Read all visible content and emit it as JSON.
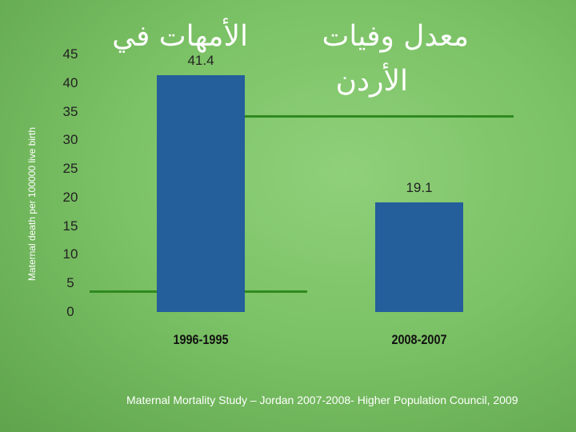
{
  "title_lines": [
    "الأمهات في",
    "معدل وفيات",
    "الأردن"
  ],
  "chart_data": {
    "type": "bar",
    "categories": [
      "1996-1995",
      "2008-2007"
    ],
    "values": [
      41.4,
      19.1
    ],
    "data_labels": [
      "41.4",
      "19.1"
    ],
    "ylabel": "Maternal death per 100000 live birth",
    "ylim": [
      0,
      45
    ],
    "yticks": [
      0,
      5,
      10,
      15,
      20,
      25,
      30,
      35,
      40,
      45
    ],
    "bar_color": "#245e9b",
    "grid": false
  },
  "source": "Maternal Mortality Study – Jordan 2007-2008- Higher Population Council, 2009"
}
